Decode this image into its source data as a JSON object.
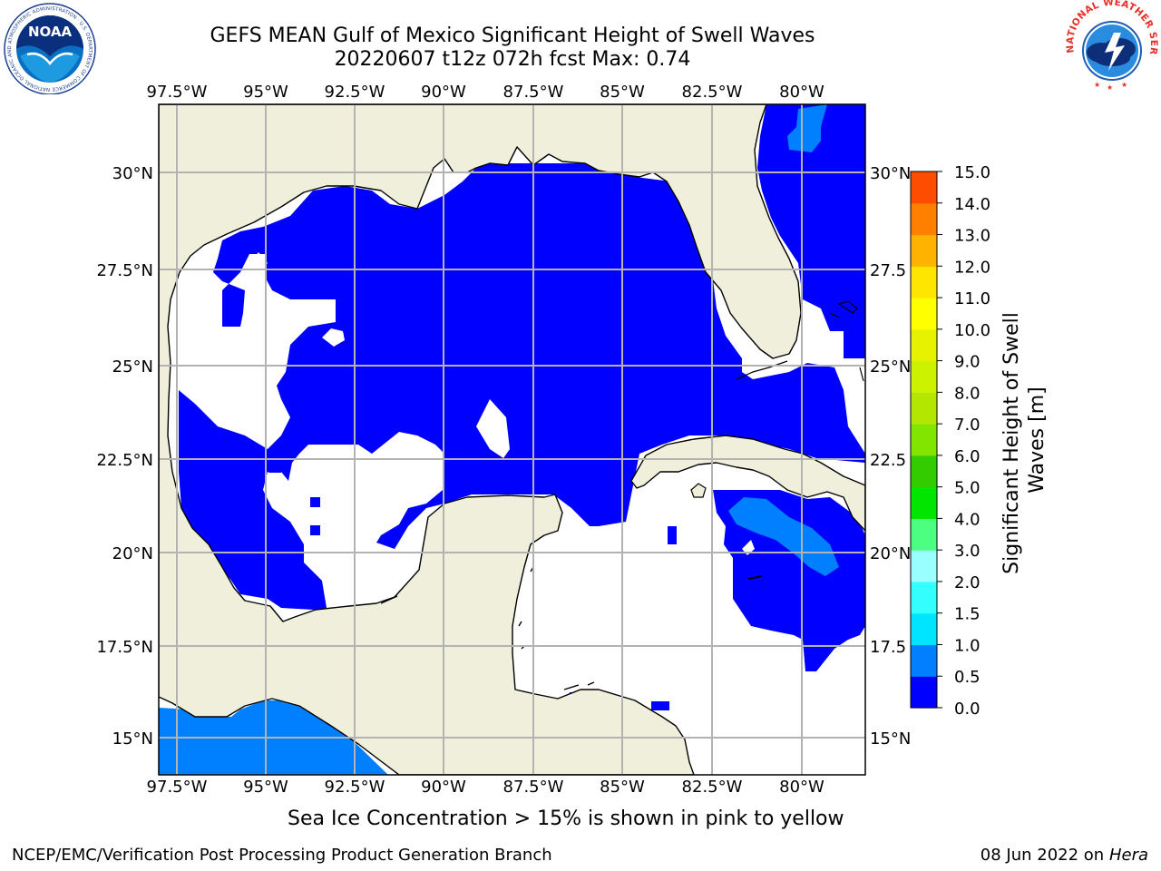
{
  "header": {
    "title": "GEFS MEAN Gulf of Mexico Significant Height of Swell Waves",
    "subtitle": "20220607 t12z 072h fcst   Max: 0.74"
  },
  "logos": {
    "noaa_text": "NOAA",
    "noaa_ring_text": "NATIONAL OCEANIC AND ATMOSPHERIC ADMINISTRATION · U.S. DEPARTMENT OF COMMERCE",
    "nws_ring_text": "NATIONAL WEATHER SERVICE"
  },
  "map": {
    "lon_labels": [
      "97.5°W",
      "95°W",
      "92.5°W",
      "90°W",
      "87.5°W",
      "85°W",
      "82.5°W",
      "80°W"
    ],
    "lat_labels_left": [
      "30°N",
      "27.5°N",
      "25°N",
      "22.5°N",
      "20°N",
      "17.5°N",
      "15°N"
    ],
    "lat_labels_right": [
      "30°N",
      "27.5",
      "25°N",
      "22.5",
      "20°N",
      "17.5",
      "15°N"
    ],
    "ocean_color": "#0000ff",
    "swell_0_5_color": "#0080ff",
    "land_color": "#efefdb",
    "nodata_color": "#ffffff",
    "grid_color": "#b3b3b3"
  },
  "colorbar": {
    "label": "Significant Height of Swell Waves [m]",
    "ticks": [
      "15.0",
      "14.0",
      "13.0",
      "12.0",
      "11.0",
      "10.0",
      "9.0",
      "8.0",
      "7.0",
      "6.0",
      "5.0",
      "4.0",
      "3.0",
      "2.0",
      "1.5",
      "1.0",
      "0.5",
      "0.0"
    ],
    "colors": [
      "#0000ff",
      "#0080ff",
      "#00e5ff",
      "#33ffff",
      "#99ffff",
      "#4cff80",
      "#00e600",
      "#33cc00",
      "#80e600",
      "#b3e600",
      "#ccf200",
      "#e6f200",
      "#ffff00",
      "#ffe600",
      "#ffb300",
      "#ff8000",
      "#ff4d00",
      "#ff1a00",
      "#ff0000"
    ]
  },
  "note": "Sea Ice Concentration > 15% is shown in pink to yellow",
  "footer": {
    "left": "NCEP/EMC/Verification Post Processing Product Generation Branch",
    "date": "08 Jun 2022 on",
    "host": "Hera"
  }
}
